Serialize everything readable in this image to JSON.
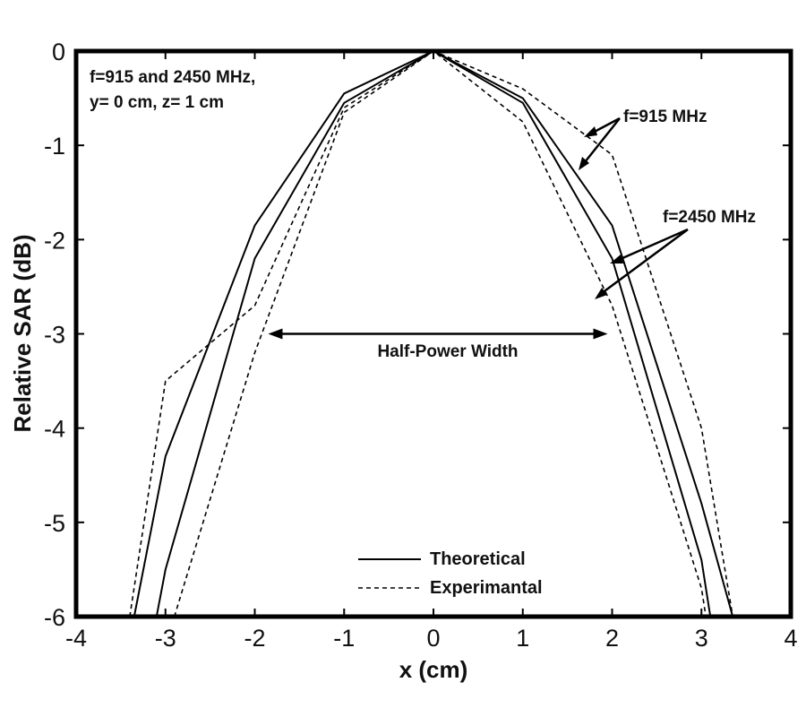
{
  "chart_data": {
    "type": "line",
    "title": "",
    "xlabel": "x (cm)",
    "ylabel": "Relative SAR (dB)",
    "xlim": [
      -4,
      4
    ],
    "ylim": [
      -6,
      0
    ],
    "x_ticks": [
      -4,
      -3,
      -2,
      -1,
      0,
      1,
      2,
      3,
      4
    ],
    "y_ticks": [
      0,
      -1,
      -2,
      -3,
      -4,
      -5,
      -6
    ],
    "grid": false,
    "series": [
      {
        "name": "Theoretical f=915 MHz",
        "style": "solid",
        "x": [
          -3.35,
          -3.0,
          -2.0,
          -1.0,
          0.0,
          1.0,
          2.0,
          3.0,
          3.35
        ],
        "y": [
          -6.0,
          -4.3,
          -1.85,
          -0.45,
          0.0,
          -0.5,
          -1.85,
          -4.8,
          -6.0
        ]
      },
      {
        "name": "Theoretical f=2450 MHz",
        "style": "solid",
        "x": [
          -3.1,
          -3.0,
          -2.0,
          -1.0,
          0.0,
          1.0,
          2.0,
          3.0,
          3.1
        ],
        "y": [
          -6.0,
          -5.5,
          -2.2,
          -0.55,
          0.0,
          -0.55,
          -2.2,
          -5.4,
          -6.0
        ]
      },
      {
        "name": "Experimantal f=915 MHz",
        "style": "dashed",
        "x": [
          -3.4,
          -3.0,
          -2.0,
          -1.0,
          0.0,
          1.0,
          2.0,
          3.0,
          3.35
        ],
        "y": [
          -6.0,
          -3.5,
          -2.7,
          -0.6,
          0.0,
          -0.4,
          -1.1,
          -4.0,
          -6.0
        ]
      },
      {
        "name": "Experimantal f=2450 MHz",
        "style": "dashed",
        "x": [
          -2.9,
          -2.0,
          -1.0,
          0.0,
          1.0,
          2.0,
          3.0,
          3.05
        ],
        "y": [
          -6.0,
          -3.2,
          -0.65,
          0.0,
          -0.75,
          -2.7,
          -5.7,
          -6.0
        ]
      }
    ],
    "annotations": {
      "conditions_line1": "f=915 and 2450 MHz,",
      "conditions_line2": "y= 0 cm, z= 1 cm",
      "label_915": "f=915 MHz",
      "label_2450": "f=2450 MHz",
      "half_power": "Half-Power Width",
      "half_power_range": [
        -1.85,
        1.95
      ],
      "half_power_level": -3
    },
    "legend": {
      "position": "bottom-center",
      "entries": [
        {
          "label": "Theoretical",
          "style": "solid"
        },
        {
          "label": "Experimantal",
          "style": "dashed"
        }
      ]
    }
  }
}
